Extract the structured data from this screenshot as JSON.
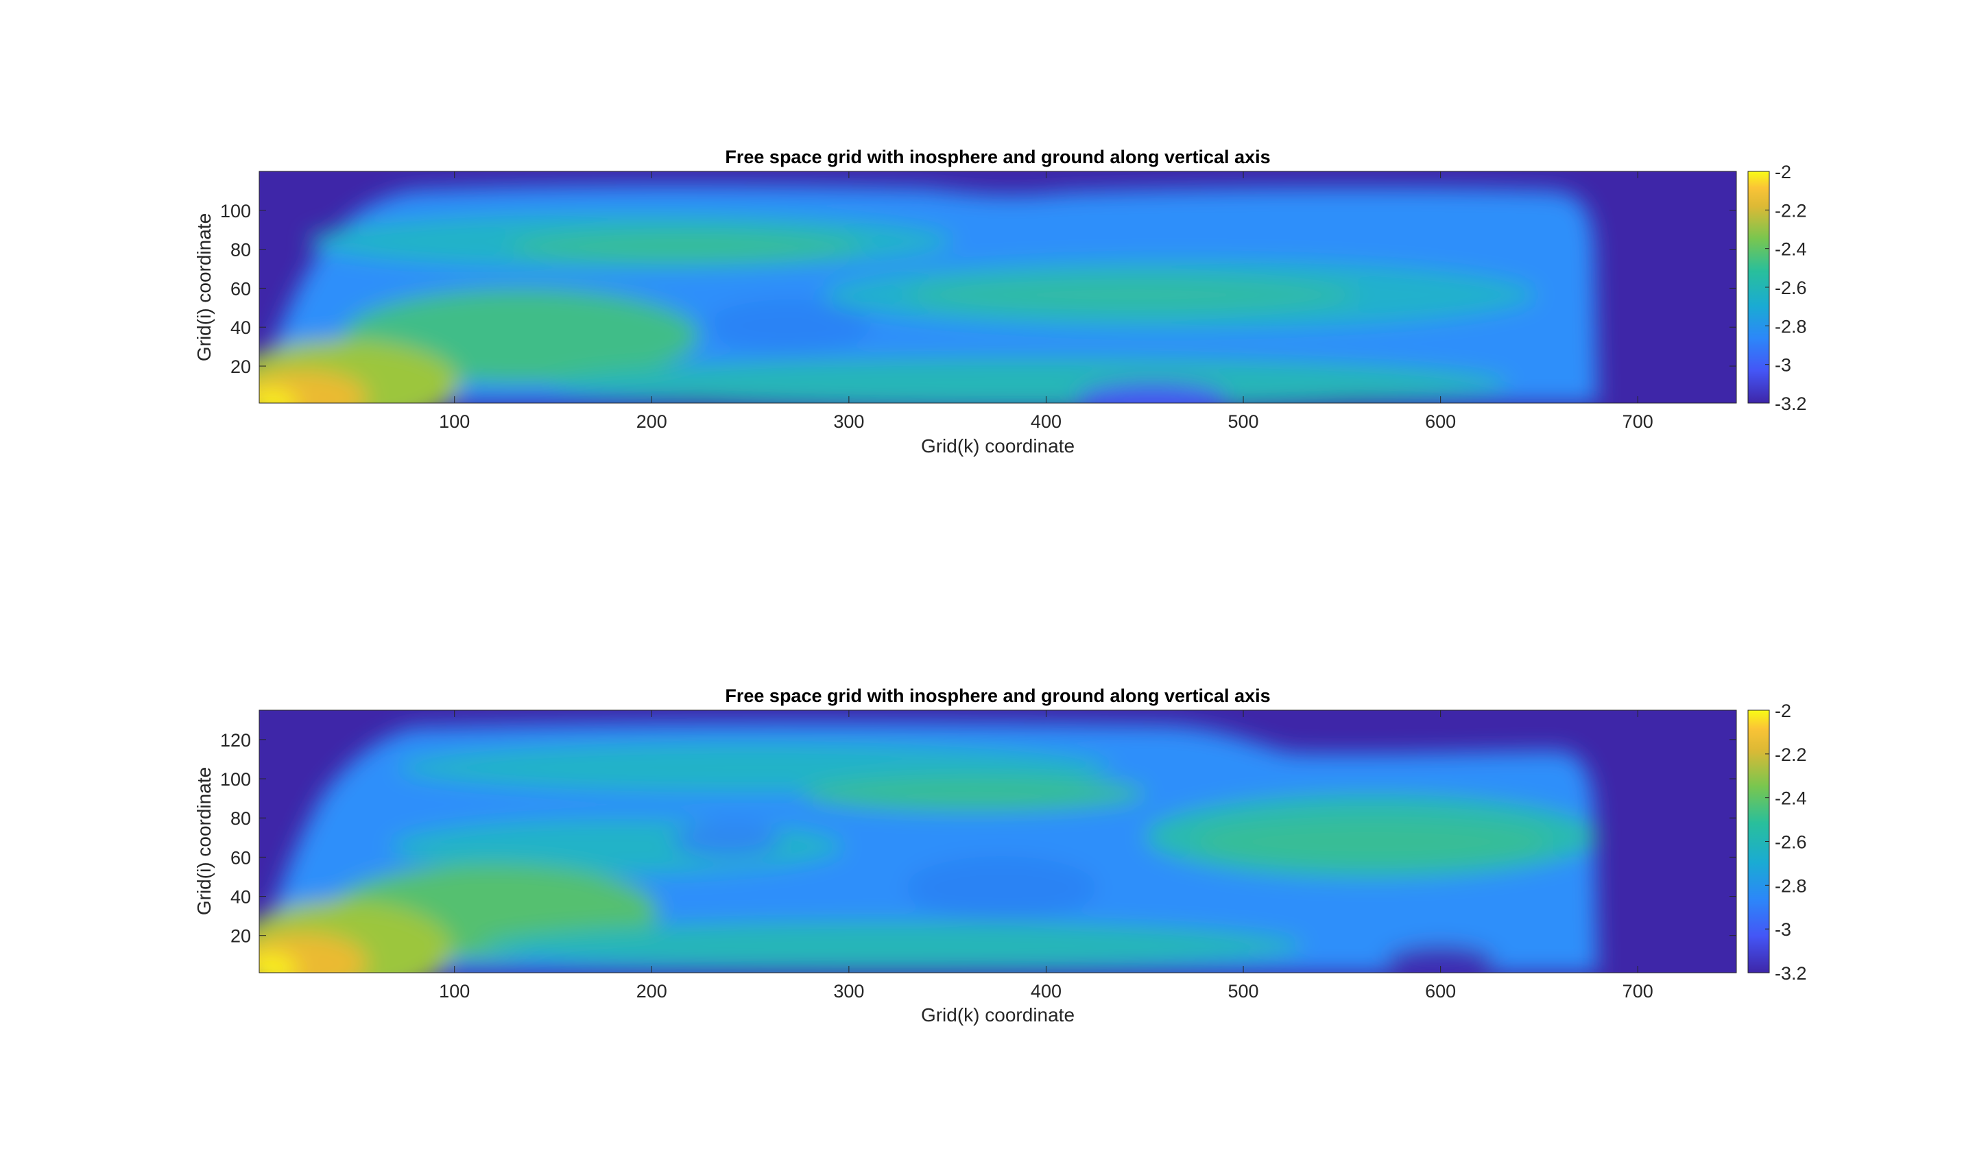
{
  "chart_data": [
    {
      "type": "heatmap",
      "title": "Free space grid with inosphere and ground along vertical axis",
      "xlabel": "Grid(k) coordinate",
      "ylabel": "Grid(i) coordinate",
      "xlim": [
        1,
        750
      ],
      "ylim": [
        1,
        120
      ],
      "xticks": [
        100,
        200,
        300,
        400,
        500,
        600,
        700
      ],
      "yticks": [
        20,
        40,
        60,
        80,
        100
      ],
      "colorbar": {
        "ticks": [
          -2,
          -2.2,
          -2.4,
          -2.6,
          -2.8,
          -3,
          -3.2
        ],
        "lim": [
          -3.2,
          -2
        ]
      },
      "colormap": "parula",
      "features": {
        "free_space_k_extent": [
          5,
          682
        ],
        "top_boundary_i": 110,
        "background_value": -3.2,
        "hot_corner": {
          "k": 10,
          "i": 5,
          "value": -2.0
        },
        "bands": [
          {
            "k": [
              90,
              360
            ],
            "i": 85,
            "value": -2.5
          },
          {
            "k": [
              360,
              660
            ],
            "i": 58,
            "value": -2.55
          },
          {
            "k": [
              60,
              200
            ],
            "i": 35,
            "value": -2.5
          }
        ],
        "cold_spots": [
          {
            "k": 275,
            "i": 38,
            "value": -2.85
          },
          {
            "k": 450,
            "i": 5,
            "value": -3.05
          }
        ]
      }
    },
    {
      "type": "heatmap",
      "title": "Free space grid with inosphere and ground along vertical axis",
      "xlabel": "Grid(k) coordinate",
      "ylabel": "Grid(i) coordinate",
      "xlim": [
        1,
        750
      ],
      "ylim": [
        1,
        135
      ],
      "xticks": [
        100,
        200,
        300,
        400,
        500,
        600,
        700
      ],
      "yticks": [
        20,
        40,
        60,
        80,
        100,
        120
      ],
      "colorbar": {
        "ticks": [
          -2,
          -2.2,
          -2.4,
          -2.6,
          -2.8,
          -3,
          -3.2
        ],
        "lim": [
          -3.2,
          -2
        ]
      },
      "colormap": "parula",
      "features": {
        "free_space_k_extent": [
          5,
          682
        ],
        "top_boundary_i": 128,
        "background_value": -3.2,
        "hot_corner": {
          "k": 10,
          "i": 5,
          "value": -2.0
        },
        "bands": [
          {
            "k": [
              150,
              460
            ],
            "i": 95,
            "value": -2.55
          },
          {
            "k": [
              470,
              670
            ],
            "i": 68,
            "value": -2.6
          },
          {
            "k": [
              60,
              200
            ],
            "i": 35,
            "value": -2.45
          }
        ],
        "cold_spots": [
          {
            "k": 380,
            "i": 45,
            "value": -2.9
          },
          {
            "k": 610,
            "i": 8,
            "value": -3.15
          }
        ]
      }
    }
  ]
}
